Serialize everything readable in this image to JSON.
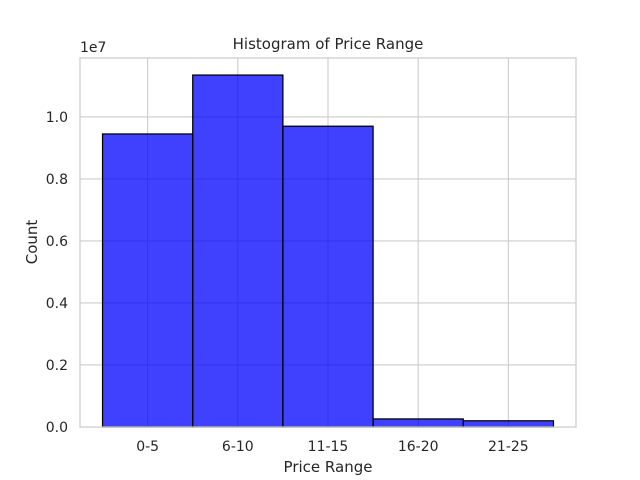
{
  "chart_data": {
    "type": "bar",
    "title": "Histogram of Price Range",
    "xlabel": "Price Range",
    "ylabel": "Count",
    "categories": [
      "0-5",
      "6-10",
      "11-15",
      "16-20",
      "21-25"
    ],
    "values": [
      9450000,
      11350000,
      9700000,
      260000,
      200000
    ],
    "y_scale_label": "1e7",
    "y_ticks": [
      0.0,
      0.2,
      0.4,
      0.6,
      0.8,
      1.0
    ],
    "y_tick_labels": [
      "0.0",
      "0.2",
      "0.4",
      "0.6",
      "0.8",
      "1.0"
    ],
    "ylim": [
      0,
      11900000
    ],
    "grid": true,
    "colors": {
      "bar_fill": "#0000ff",
      "bar_opacity": "0.75",
      "bar_edge": "#000000",
      "grid": "#cccccc",
      "spine": "#cccccc",
      "text": "#262626"
    }
  }
}
